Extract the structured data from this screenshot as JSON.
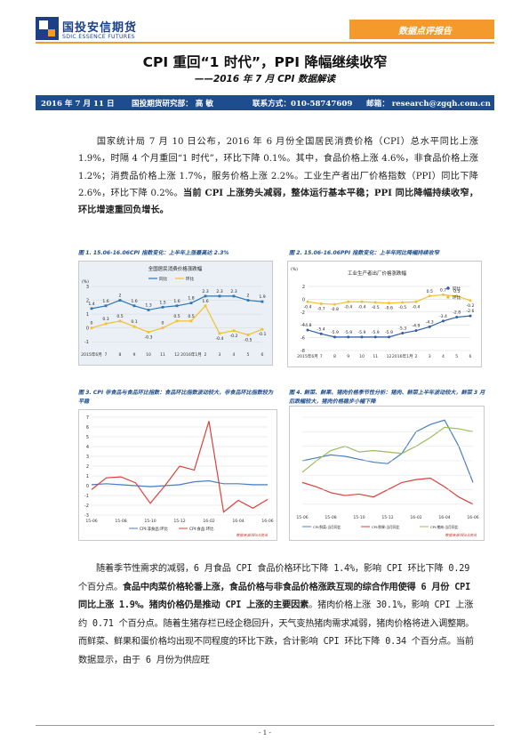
{
  "header": {
    "logo_cn": "国投安信期货",
    "logo_en": "SDIC ESSENCE FUTURES",
    "report_type": "数据点评报告"
  },
  "title": "CPI 重回“1 时代”，PPI 降幅继续收窄",
  "subtitle": "——2016 年 7 月 CPI 数据解读",
  "info": {
    "date": "2016 年 7 月 11 日",
    "dept": "国投期货研究部： 高 敏",
    "contact": "联系方式：010-58747609",
    "email": "邮箱： research@zgqh.com.cn"
  },
  "para1": {
    "text": "国家统计局 7 月 10 日公布，2016 年 6 月份全国居民消费价格（CPI）总水平同比上涨 1.9%，时隔 4 个月重回“1 时代”，环比下降 0.1%。其中，食品价格上涨 4.6%，非食品价格上涨 1.2%；消费品价格上涨 1.7%，服务价格上涨 2.2%。工业生产者出厂价格指数（PPI）同比下降 2.6%，环比下降 0.2%。",
    "bold": "当前 CPI 上涨势头减弱，整体运行基本平稳；PPI 同比降幅持续收窄，环比增速重回负增长。"
  },
  "figures": {
    "fig1_caption": "图 1. 15.06-16.06CPI 指数变化：上半年上涨最高达 2.3%",
    "fig2_caption": "图 2. 15.06-16.06PPI 指数变化：上半年同比降幅持续收窄",
    "fig3_caption": "图 3. CPI 非食品与食品环比指数：食品环比指数波动较大，非食品环比指数较为平稳",
    "fig4_caption": "图 4. 鲜菜、鲜果、猪肉价格季节性分析：猪肉、鲜菜上半年波动较大，鲜菜 3 月后跌幅较大，猪肉价格稳步小幅下降"
  },
  "para2": {
    "t1": "随着季节性需求的减弱，6 月食品 CPI 食品价格环比下降 1.4%，影响 CPI 环比下降 0.29 个百分点。",
    "b1": "食品中肉菜价格轮番上涨，食品价格与非食品价格涨跌互现的综合作用使得 6 月份 CPI 同比上涨 1.9%。",
    "b2": "猪肉价格仍是推动 CPI 上涨的主要因素",
    "t2": "。猪肉价格上涨 30.1%，影响 CPI 上涨约 0.71 个百分点。随着生猪存栏已经企稳回升，天气变热猪肉需求减弱，猪肉价格将进入调整期。而鲜菜、鲜果和蛋价格均出现不同程度的环比下跌，合计影响 CPI 环比下降 0.34 个百分点。当前数据显示，由于 6 月份为供应旺"
  },
  "footer": "- 1 -",
  "colors": {
    "accent_orange": "#f49a2d",
    "brand_blue": "#1d4c8f",
    "series_blue": "#2e75b6",
    "series_yellow": "#f2c12e",
    "series_red": "#d9413a",
    "series_green": "#9bbb59"
  },
  "chart_data": [
    {
      "type": "line",
      "title": "全国居民消费价格涨跌幅",
      "ylabel": "(%)",
      "ylim": [
        -1.5,
        3
      ],
      "categories": [
        "2015年6月",
        "7",
        "8",
        "9",
        "10",
        "11",
        "12",
        "2016年1月",
        "2",
        "3",
        "4",
        "5",
        "6"
      ],
      "legend": [
        "同比",
        "环比"
      ],
      "series": [
        {
          "name": "同比",
          "values": [
            1.4,
            1.6,
            2.0,
            1.6,
            1.3,
            1.5,
            1.6,
            1.8,
            2.3,
            2.3,
            2.3,
            2.0,
            1.9
          ]
        },
        {
          "name": "环比",
          "values": [
            0,
            0.3,
            0.5,
            0.1,
            -0.3,
            0,
            0.5,
            0.5,
            1.6,
            -0.4,
            -0.2,
            -0.5,
            -0.1
          ]
        }
      ]
    },
    {
      "type": "line",
      "title": "工业生产者出厂价格涨跌幅",
      "ylabel": "(%)",
      "ylim": [
        -8,
        2
      ],
      "categories": [
        "2015年6月",
        "7",
        "8",
        "9",
        "10",
        "11",
        "12",
        "2016年1月",
        "2",
        "3",
        "4",
        "5",
        "6"
      ],
      "legend": [
        "同比",
        "环比"
      ],
      "series": [
        {
          "name": "同比",
          "values": [
            -4.8,
            -5.4,
            -5.9,
            -5.9,
            -5.9,
            -5.9,
            -5.9,
            -5.3,
            -4.9,
            -4.3,
            -3.4,
            -2.8,
            -2.6
          ]
        },
        {
          "name": "环比",
          "values": [
            -0.4,
            -0.7,
            -0.8,
            -0.4,
            -0.4,
            -0.5,
            -0.6,
            -0.5,
            -0.4,
            0.5,
            0.7,
            0.5,
            -0.2
          ]
        }
      ]
    },
    {
      "type": "line",
      "ylim": [
        -3,
        7
      ],
      "x_ticks": [
        "15-06",
        "15-07",
        "15-08",
        "15-09",
        "15-10",
        "15-11",
        "15-12",
        "16-01",
        "16-02",
        "16-03",
        "16-04",
        "16-05",
        "16-06"
      ],
      "series": [
        {
          "name": "CPI:非食品:环比",
          "values": [
            0.1,
            0.2,
            0.1,
            0.0,
            -0.1,
            0.0,
            0.1,
            0.4,
            0.5,
            0.2,
            0.2,
            0.1,
            0.1
          ]
        },
        {
          "name": "CPI:食品:环比",
          "values": [
            -0.4,
            0.8,
            0.9,
            0.3,
            -1.8,
            0.0,
            2.0,
            1.6,
            6.6,
            -2.7,
            -1.5,
            -2.3,
            -1.4
          ]
        }
      ],
      "note": "数据来源:Wind资讯"
    },
    {
      "type": "line",
      "x_ticks": [
        "15-06",
        "15-07",
        "15-08",
        "15-09",
        "15-10",
        "15-11",
        "15-12",
        "16-01",
        "16-02",
        "16-03",
        "16-04",
        "16-05",
        "16-06"
      ],
      "series": [
        {
          "name": "CPI:鲜菜:当月同比",
          "values": [
            10,
            12,
            14,
            13,
            11,
            9,
            8,
            15,
            30,
            35,
            38,
            20,
            -5
          ]
        },
        {
          "name": "CPI:鲜果:当月同比",
          "values": [
            -5,
            -8,
            -12,
            -14,
            -13,
            -15,
            -10,
            -5,
            -3,
            -2,
            -8,
            -15,
            -20
          ]
        },
        {
          "name": "CPI:猪肉:当月同比",
          "values": [
            2,
            10,
            17,
            20,
            16,
            17,
            16,
            15,
            20,
            26,
            33,
            32,
            30
          ]
        }
      ],
      "note": "数据来源:Wind资讯"
    }
  ]
}
